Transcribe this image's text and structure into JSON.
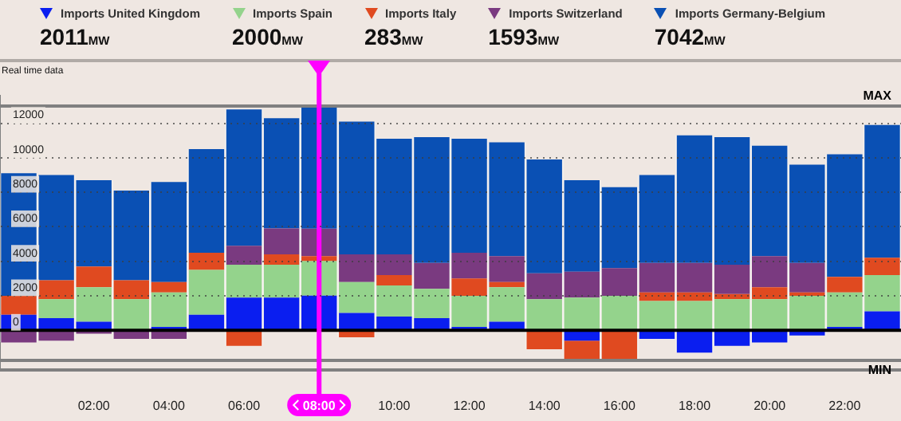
{
  "chart_data": {
    "type": "bar",
    "stacked": true,
    "subtitle": "Real time data",
    "ylabel": "MW",
    "categories": [
      null,
      null,
      "02:00",
      null,
      "04:00",
      null,
      "06:00",
      null,
      "08:00",
      null,
      "10:00",
      null,
      "12:00",
      null,
      "14:00",
      null,
      "16:00",
      null,
      "18:00",
      null,
      "20:00",
      null,
      "22:00",
      null
    ],
    "series": [
      {
        "name": "Imports United Kingdom",
        "color": "#0a1ef0",
        "values": [
          900,
          700,
          500,
          null,
          200,
          900,
          1900,
          1900,
          2011,
          1000,
          800,
          700,
          200,
          500,
          0,
          -600,
          0,
          -500,
          -1300,
          -900,
          -700,
          -300,
          200,
          1100
        ]
      },
      {
        "name": "Imports Spain",
        "color": "#94d38c",
        "values": [
          0,
          1100,
          2000,
          1800,
          2000,
          2600,
          1900,
          1900,
          2000,
          1800,
          1800,
          1700,
          1800,
          2000,
          1800,
          1900,
          2000,
          1700,
          1700,
          1800,
          1800,
          2000,
          2000,
          2100
        ]
      },
      {
        "name": "Imports Italy",
        "color": "#e04a20",
        "values": [
          1100,
          1100,
          1200,
          1100,
          600,
          1000,
          -900,
          600,
          283,
          -400,
          600,
          0,
          1000,
          300,
          -1100,
          -1100,
          -1700,
          500,
          500,
          300,
          700,
          200,
          900,
          1000
        ]
      },
      {
        "name": "Imports Switzerland",
        "color": "#7a3a80",
        "values": [
          -700,
          -600,
          -200,
          -500,
          -500,
          0,
          1100,
          1500,
          1593,
          1600,
          1200,
          1500,
          1500,
          1500,
          1500,
          1500,
          1600,
          1700,
          1700,
          1700,
          1800,
          1700,
          0,
          0
        ]
      },
      {
        "name": "Imports Germany-Belgium",
        "color": "#0a50b4",
        "values": [
          7100,
          6100,
          5000,
          5200,
          5800,
          6000,
          7900,
          6400,
          7042,
          7700,
          6700,
          7300,
          6600,
          6600,
          6600,
          5300,
          4700,
          5100,
          7400,
          7400,
          6400,
          5700,
          7100,
          7700
        ]
      }
    ],
    "annotations": [
      "2011",
      "2000",
      "283",
      "1593",
      "7042"
    ],
    "ylim": [
      -2300,
      13600
    ],
    "yticks": [
      0,
      2000,
      4000,
      6000,
      8000,
      10000,
      12000
    ],
    "grid": "y",
    "legend": "top",
    "ref_lines": [
      {
        "axis": "y",
        "value": 13000,
        "label": "MAX",
        "color": "#808080"
      },
      {
        "axis": "y",
        "value": -1750,
        "label": "MIN",
        "color": "#808080"
      },
      {
        "axis": "x",
        "value": "08:00",
        "color": "#ff00ff"
      }
    ]
  }
}
